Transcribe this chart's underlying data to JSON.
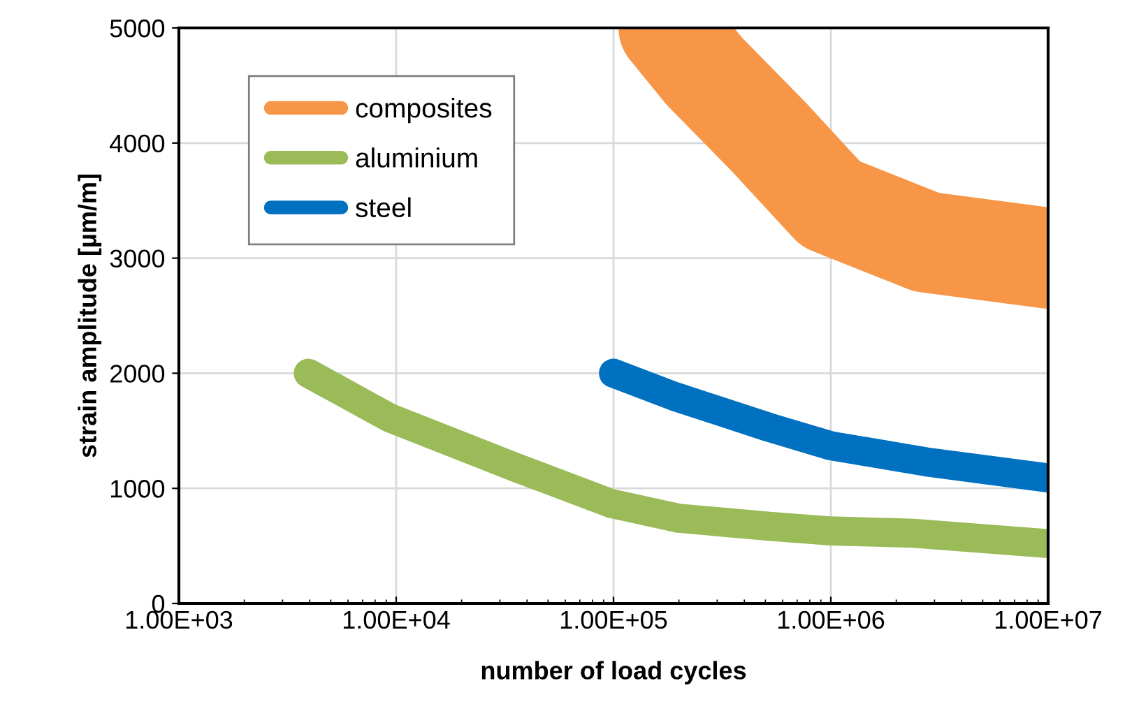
{
  "chart_data": {
    "type": "line",
    "xlabel": "number of load cycles",
    "ylabel": "strain amplitude [µm/m]",
    "log": "x",
    "xlim": [
      1000,
      10000000
    ],
    "ylim": [
      0,
      5000
    ],
    "xticks": [
      {
        "value": 1000,
        "label": "1.00E+03"
      },
      {
        "value": 10000,
        "label": "1.00E+04"
      },
      {
        "value": 100000,
        "label": "1.00E+05"
      },
      {
        "value": 1000000,
        "label": "1.00E+06"
      },
      {
        "value": 10000000,
        "label": "1.00E+07"
      }
    ],
    "yticks": [
      0,
      1000,
      2000,
      3000,
      4000,
      5000
    ],
    "grid": true,
    "legend": "top left",
    "line_style": "solid",
    "series": [
      {
        "name": "composites",
        "color": "#f79646",
        "x": [
          180000,
          260000,
          520000,
          1000000,
          2750000,
          10000000
        ],
        "values": [
          5000,
          4630,
          4050,
          3470,
          3140,
          3000
        ]
      },
      {
        "name": "aluminium",
        "color": "#9bbb59",
        "x": [
          3940,
          9400,
          35700,
          97000,
          200000,
          520000,
          1000000,
          2400000,
          10000000
        ],
        "values": [
          2000,
          1610,
          1180,
          870,
          740,
          670,
          630,
          610,
          520
        ]
      },
      {
        "name": "steel",
        "color": "#0070c0",
        "x": [
          100000,
          190000,
          520000,
          1000000,
          2750000,
          10000000
        ],
        "values": [
          2000,
          1800,
          1530,
          1370,
          1230,
          1090
        ]
      }
    ]
  }
}
